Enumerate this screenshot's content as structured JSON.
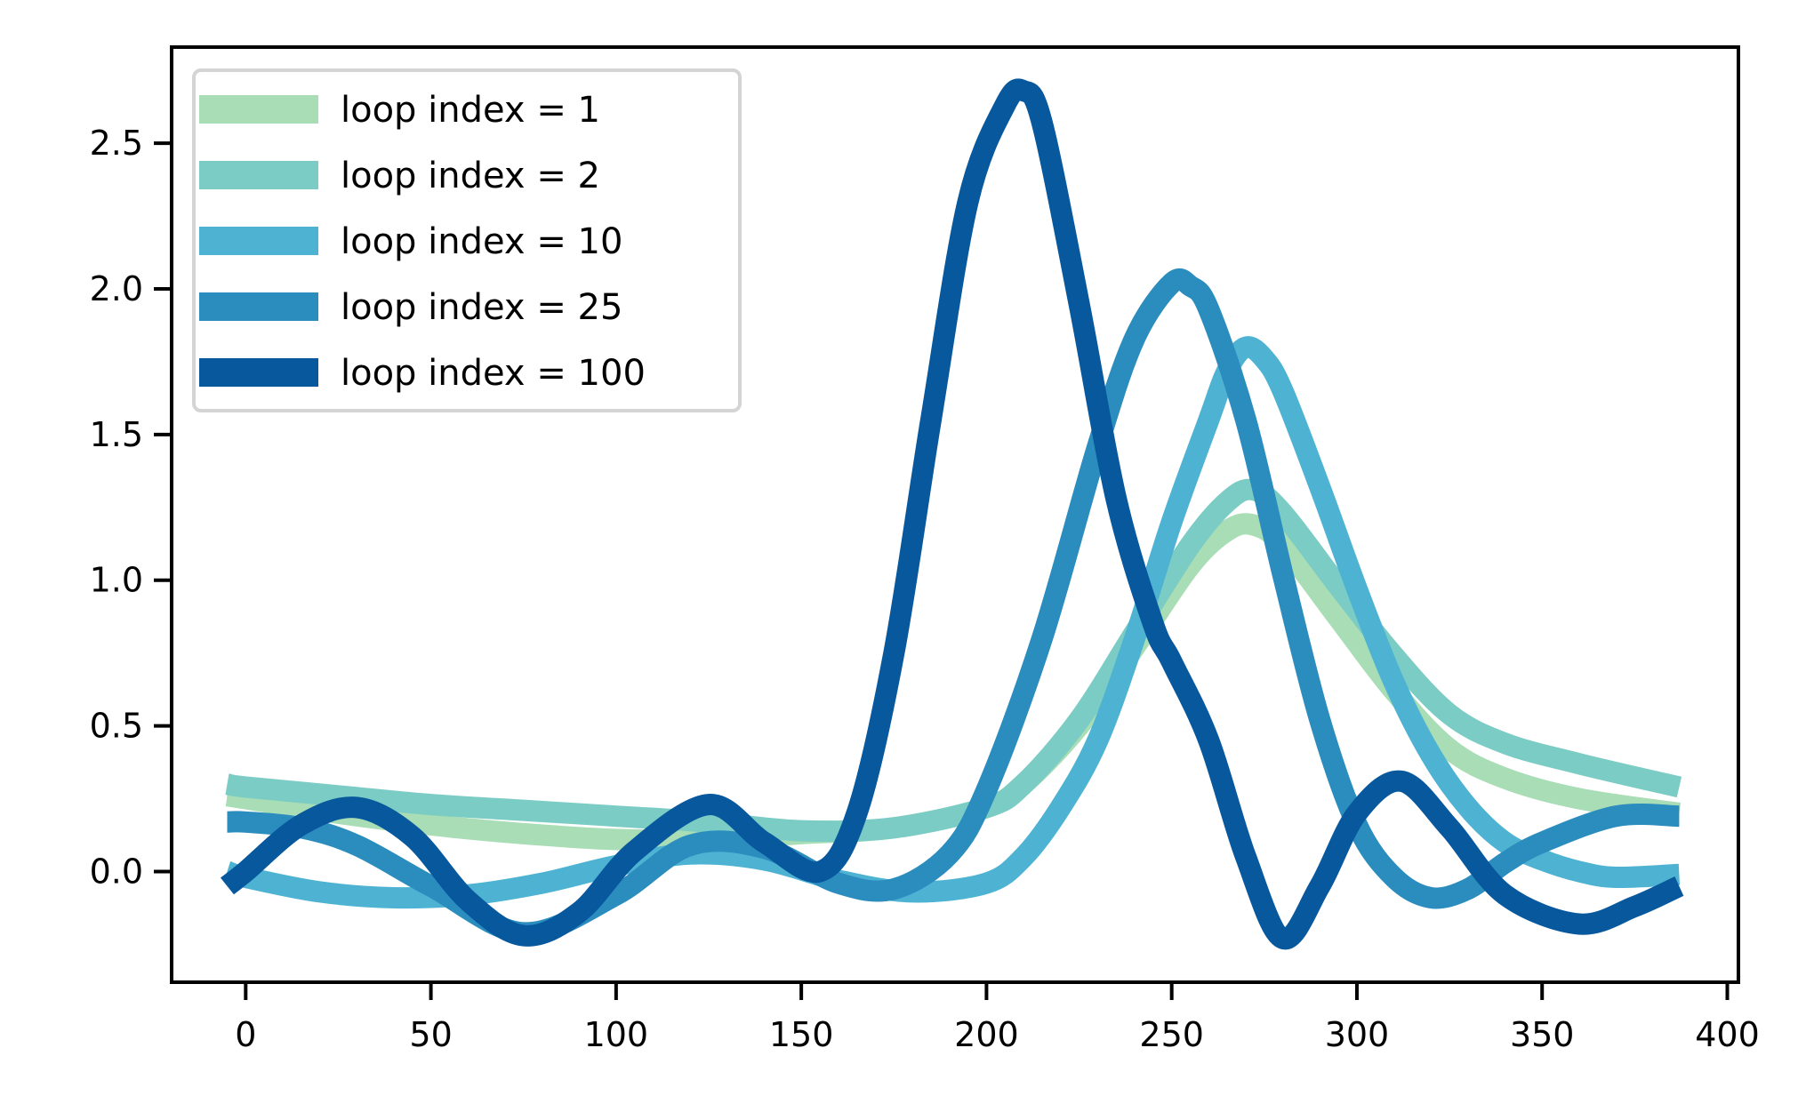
{
  "chart_data": {
    "type": "line",
    "title": "",
    "xlabel": "",
    "ylabel": "",
    "xlim": [
      -20,
      403
    ],
    "ylim": [
      -0.38,
      2.83
    ],
    "x_ticks": [
      0,
      50,
      100,
      150,
      200,
      250,
      300,
      350,
      400
    ],
    "y_ticks": [
      0.0,
      0.5,
      1.0,
      1.5,
      2.0,
      2.5
    ],
    "x_tick_labels": [
      "0",
      "50",
      "100",
      "150",
      "200",
      "250",
      "300",
      "350",
      "400"
    ],
    "y_tick_labels": [
      "0.0",
      "0.5",
      "1.0",
      "1.5",
      "2.0",
      "2.5"
    ],
    "grid": false,
    "legend_position": "top-left",
    "series": [
      {
        "name": "loop index = 1",
        "color": "#a8ddb5",
        "x": [
          -5,
          0,
          25,
          50,
          75,
          100,
          125,
          150,
          175,
          200,
          210,
          225,
          240,
          255,
          265,
          272,
          280,
          295,
          310,
          325,
          340,
          360,
          387
        ],
        "y": [
          0.26,
          0.25,
          0.2,
          0.16,
          0.13,
          0.11,
          0.11,
          0.13,
          0.15,
          0.22,
          0.3,
          0.5,
          0.77,
          1.05,
          1.17,
          1.19,
          1.12,
          0.87,
          0.62,
          0.42,
          0.32,
          0.25,
          0.2
        ]
      },
      {
        "name": "loop index = 2",
        "color": "#7bccc4",
        "x": [
          -5,
          0,
          25,
          50,
          75,
          100,
          125,
          150,
          175,
          200,
          210,
          225,
          240,
          255,
          265,
          272,
          280,
          295,
          310,
          325,
          340,
          360,
          387
        ],
        "y": [
          0.3,
          0.29,
          0.26,
          0.23,
          0.21,
          0.19,
          0.17,
          0.14,
          0.15,
          0.22,
          0.3,
          0.52,
          0.82,
          1.12,
          1.27,
          1.31,
          1.23,
          0.98,
          0.74,
          0.54,
          0.44,
          0.37,
          0.29
        ]
      },
      {
        "name": "loop index = 10",
        "color": "#4eb3d3",
        "x": [
          -5,
          0,
          20,
          40,
          60,
          80,
          100,
          120,
          140,
          160,
          180,
          200,
          210,
          220,
          230,
          240,
          250,
          260,
          265,
          270,
          275,
          280,
          290,
          300,
          310,
          320,
          330,
          340,
          350,
          360,
          370,
          387
        ],
        "y": [
          0.0,
          -0.02,
          -0.07,
          -0.09,
          -0.08,
          -0.04,
          0.02,
          0.06,
          0.04,
          -0.03,
          -0.07,
          -0.04,
          0.05,
          0.22,
          0.45,
          0.8,
          1.2,
          1.55,
          1.72,
          1.8,
          1.76,
          1.65,
          1.32,
          0.97,
          0.65,
          0.4,
          0.22,
          0.1,
          0.04,
          0.0,
          -0.02,
          -0.01
        ]
      },
      {
        "name": "loop index = 25",
        "color": "#2b8cbe",
        "x": [
          -5,
          0,
          15,
          30,
          50,
          75,
          100,
          120,
          140,
          160,
          175,
          190,
          200,
          215,
          230,
          240,
          250,
          255,
          260,
          270,
          280,
          290,
          300,
          310,
          320,
          330,
          340,
          350,
          370,
          387
        ],
        "y": [
          0.17,
          0.17,
          0.15,
          0.09,
          -0.05,
          -0.21,
          -0.08,
          0.09,
          0.08,
          -0.04,
          -0.06,
          0.06,
          0.28,
          0.8,
          1.46,
          1.83,
          2.02,
          2.01,
          1.93,
          1.55,
          1.02,
          0.52,
          0.16,
          -0.02,
          -0.09,
          -0.06,
          0.03,
          0.1,
          0.19,
          0.19
        ]
      },
      {
        "name": "loop index = 100",
        "color": "#08589e",
        "x": [
          -5,
          0,
          15,
          30,
          45,
          60,
          75,
          90,
          105,
          125,
          140,
          155,
          165,
          175,
          185,
          195,
          205,
          210,
          215,
          225,
          235,
          245,
          250,
          260,
          270,
          280,
          290,
          300,
          312,
          325,
          340,
          360,
          375,
          387
        ],
        "y": [
          -0.05,
          0.0,
          0.16,
          0.22,
          0.12,
          -0.1,
          -0.22,
          -0.14,
          0.07,
          0.23,
          0.1,
          0.0,
          0.2,
          0.75,
          1.55,
          2.3,
          2.63,
          2.68,
          2.57,
          1.95,
          1.28,
          0.85,
          0.72,
          0.45,
          0.05,
          -0.23,
          -0.05,
          0.2,
          0.31,
          0.15,
          -0.08,
          -0.18,
          -0.12,
          -0.05
        ]
      }
    ]
  }
}
